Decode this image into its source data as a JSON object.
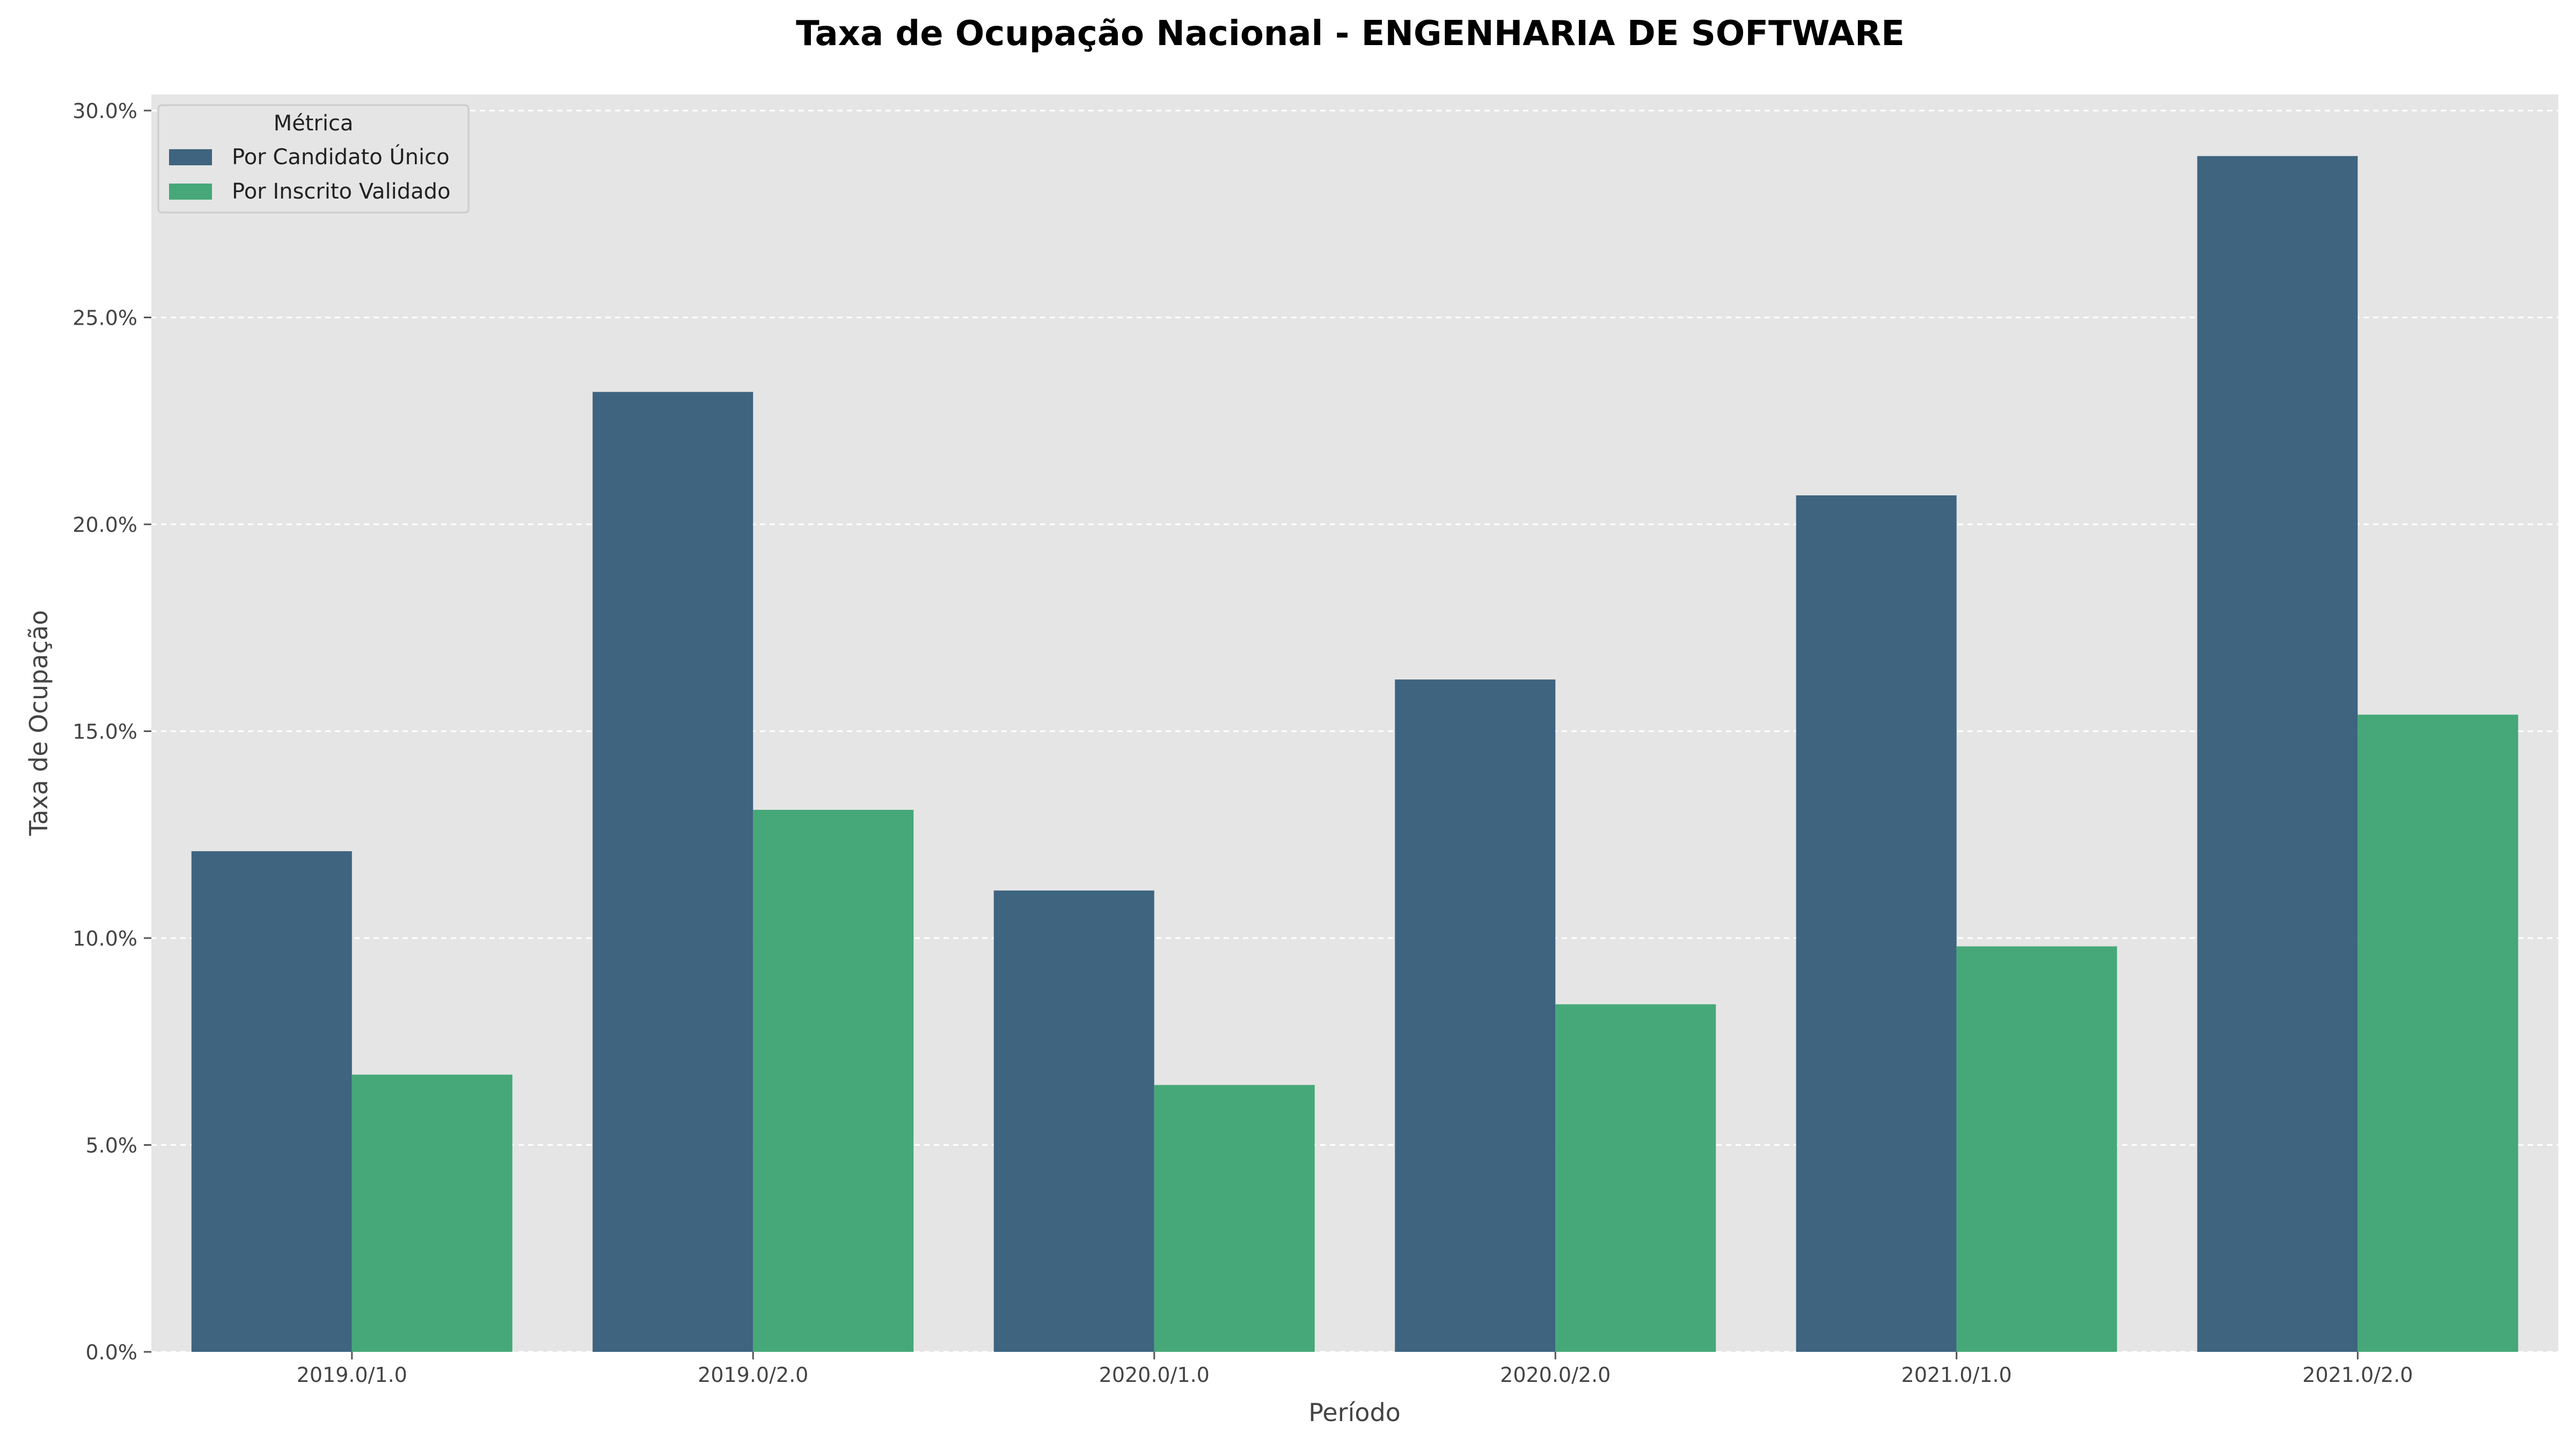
{
  "chart_data": {
    "type": "bar",
    "title": "Taxa de Ocupação Nacional - ENGENHARIA DE SOFTWARE",
    "xlabel": "Período",
    "ylabel": "Taxa de Ocupação",
    "categories": [
      "2019.0/1.0",
      "2019.0/2.0",
      "2020.0/1.0",
      "2020.0/2.0",
      "2021.0/1.0",
      "2021.0/2.0"
    ],
    "series": [
      {
        "name": "Por Candidato Único",
        "color": "#3e6480",
        "values": [
          12.1,
          23.2,
          11.15,
          16.25,
          20.7,
          28.9
        ]
      },
      {
        "name": "Por Inscrito Validado",
        "color": "#46a878",
        "values": [
          6.7,
          13.1,
          6.45,
          8.4,
          9.8,
          15.4
        ]
      }
    ],
    "ylim": [
      0,
      30
    ],
    "yticks": [
      "0.0%",
      "5.0%",
      "10.0%",
      "15.0%",
      "20.0%",
      "25.0%",
      "30.0%"
    ],
    "grid": true,
    "legend": {
      "title": "Métrica",
      "placement": "top-left"
    }
  }
}
